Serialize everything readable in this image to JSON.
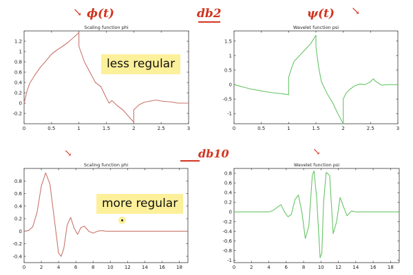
{
  "annotations": {
    "phi_label": "ϕ(t)",
    "psi_label": "ψ(t)",
    "db2_label": "db2",
    "db10_label": "db10",
    "less_regular": "less regular",
    "more_regular": "more regular"
  },
  "colors": {
    "phi_line": "#c8746a",
    "psi_line": "#66c466",
    "annotation": "#d1341f",
    "callout_bg": "#fdf09a"
  },
  "chart_data": [
    {
      "type": "line",
      "title": "Scaling function phi",
      "wavelet": "db2",
      "xlim": [
        0,
        3
      ],
      "ylim": [
        -0.4,
        1.4
      ],
      "xticks": [
        "0",
        "0.5",
        "1",
        "1.5",
        "2",
        "2.5",
        "3"
      ],
      "yticks": [
        "-0.2",
        "0",
        "0.2",
        "0.4",
        "0.6",
        "0.8",
        "1",
        "1.2"
      ],
      "grid": false,
      "series": [
        {
          "x": [
            0,
            0.05,
            0.1,
            0.2,
            0.3,
            0.4,
            0.5,
            0.6,
            0.7,
            0.8,
            0.9,
            1.0,
            1.0,
            1.05,
            1.1,
            1.2,
            1.3,
            1.4,
            1.5,
            1.55,
            1.6,
            1.7,
            1.8,
            1.9,
            2.0,
            2.0,
            2.05,
            2.1,
            2.2,
            2.3,
            2.4,
            2.5,
            2.6,
            2.7,
            2.8,
            2.9,
            3.0
          ],
          "y": [
            0,
            0.22,
            0.38,
            0.55,
            0.7,
            0.82,
            0.95,
            1.03,
            1.1,
            1.18,
            1.27,
            1.37,
            1.1,
            0.95,
            0.8,
            0.6,
            0.4,
            0.32,
            0.1,
            0.0,
            0.05,
            -0.05,
            -0.13,
            -0.25,
            -0.37,
            -0.13,
            -0.08,
            -0.03,
            0.02,
            0.04,
            0.06,
            0.04,
            0.03,
            0.02,
            0.0,
            0.0,
            0.0
          ]
        }
      ]
    },
    {
      "type": "line",
      "title": "Wavelet function psi",
      "wavelet": "db2",
      "xlim": [
        0,
        3
      ],
      "ylim": [
        -1.35,
        1.85
      ],
      "xticks": [
        "0",
        "0.5",
        "1",
        "1.5",
        "2",
        "2.5",
        "3"
      ],
      "yticks": [
        "-1",
        "-0.5",
        "0",
        "0.5",
        "1",
        "1.5"
      ],
      "grid": false,
      "series": [
        {
          "x": [
            0,
            0.1,
            0.2,
            0.3,
            0.5,
            0.7,
            0.9,
            1.0,
            1.0,
            1.05,
            1.1,
            1.2,
            1.3,
            1.4,
            1.5,
            1.5,
            1.55,
            1.6,
            1.7,
            1.8,
            1.9,
            2.0,
            2.0,
            2.05,
            2.1,
            2.2,
            2.3,
            2.4,
            2.5,
            2.55,
            2.6,
            2.7,
            2.8,
            2.9,
            3.0
          ],
          "y": [
            0,
            -0.05,
            -0.1,
            -0.15,
            -0.22,
            -0.28,
            -0.32,
            -0.35,
            0.25,
            0.55,
            0.8,
            1.0,
            1.2,
            1.4,
            1.7,
            1.3,
            0.6,
            0.1,
            -0.3,
            -0.6,
            -1.0,
            -1.35,
            -0.5,
            -0.3,
            -0.2,
            -0.05,
            0.02,
            0.0,
            0.1,
            0.2,
            0.1,
            -0.02,
            0.0,
            0.0,
            0.0
          ]
        }
      ]
    },
    {
      "type": "line",
      "title": "Scaling function phi",
      "wavelet": "db10",
      "xlim": [
        0,
        19
      ],
      "ylim": [
        -0.5,
        1.0
      ],
      "xticks": [
        "0",
        "2",
        "4",
        "6",
        "8",
        "10",
        "12",
        "14",
        "16",
        "18"
      ],
      "yticks": [
        "-0.4",
        "-0.2",
        "0",
        "0.2",
        "0.4",
        "0.6",
        "0.8"
      ],
      "grid": false,
      "series": [
        {
          "x": [
            0,
            0.5,
            1.0,
            1.5,
            2.0,
            2.5,
            3.0,
            3.5,
            4.0,
            4.3,
            4.6,
            5.0,
            5.4,
            5.8,
            6.2,
            6.6,
            7.0,
            7.5,
            8.0,
            8.5,
            9.0,
            9.5,
            10.0,
            11.0,
            12.0,
            13.0,
            14.0,
            15.0,
            16.0,
            17.0,
            18.0,
            19.0
          ],
          "y": [
            0,
            0.01,
            0.07,
            0.3,
            0.72,
            0.93,
            0.75,
            0.2,
            -0.35,
            -0.4,
            -0.28,
            0.1,
            0.22,
            0.05,
            -0.05,
            0.06,
            0.08,
            0.0,
            -0.03,
            0.0,
            0.01,
            0.0,
            0.0,
            0.0,
            0.0,
            0.0,
            0.0,
            0.0,
            0.0,
            0.0,
            0.0,
            0.0
          ]
        }
      ]
    },
    {
      "type": "line",
      "title": "Wavelet function psi",
      "wavelet": "db10",
      "xlim": [
        0,
        19
      ],
      "ylim": [
        -1.05,
        0.9
      ],
      "xticks": [
        "0",
        "2",
        "4",
        "6",
        "8",
        "10",
        "12",
        "14",
        "16",
        "18"
      ],
      "yticks": [
        "-1",
        "-0.8",
        "-0.6",
        "-0.4",
        "-0.2",
        "0",
        "0.2",
        "0.4",
        "0.6",
        "0.8"
      ],
      "grid": false,
      "series": [
        {
          "x": [
            0,
            1,
            2,
            3,
            4,
            4.5,
            5.0,
            5.4,
            5.8,
            6.2,
            6.6,
            7.0,
            7.4,
            7.8,
            8.2,
            8.6,
            9.0,
            9.2,
            9.5,
            9.9,
            10.1,
            10.3,
            10.6,
            11.0,
            11.4,
            11.8,
            12.2,
            12.6,
            13.0,
            13.5,
            14.0,
            15.0,
            16.0,
            17.0,
            18.0,
            19.0
          ],
          "y": [
            0,
            0,
            0,
            0,
            0,
            0.03,
            0.1,
            0.15,
            0.0,
            -0.1,
            -0.05,
            0.25,
            0.35,
            0.0,
            -0.55,
            -0.3,
            0.75,
            0.85,
            0.3,
            -0.95,
            -0.85,
            0.2,
            0.82,
            0.75,
            -0.45,
            -0.2,
            0.3,
            0.1,
            -0.08,
            0.02,
            0,
            0,
            0,
            0,
            0,
            0
          ]
        }
      ]
    }
  ]
}
